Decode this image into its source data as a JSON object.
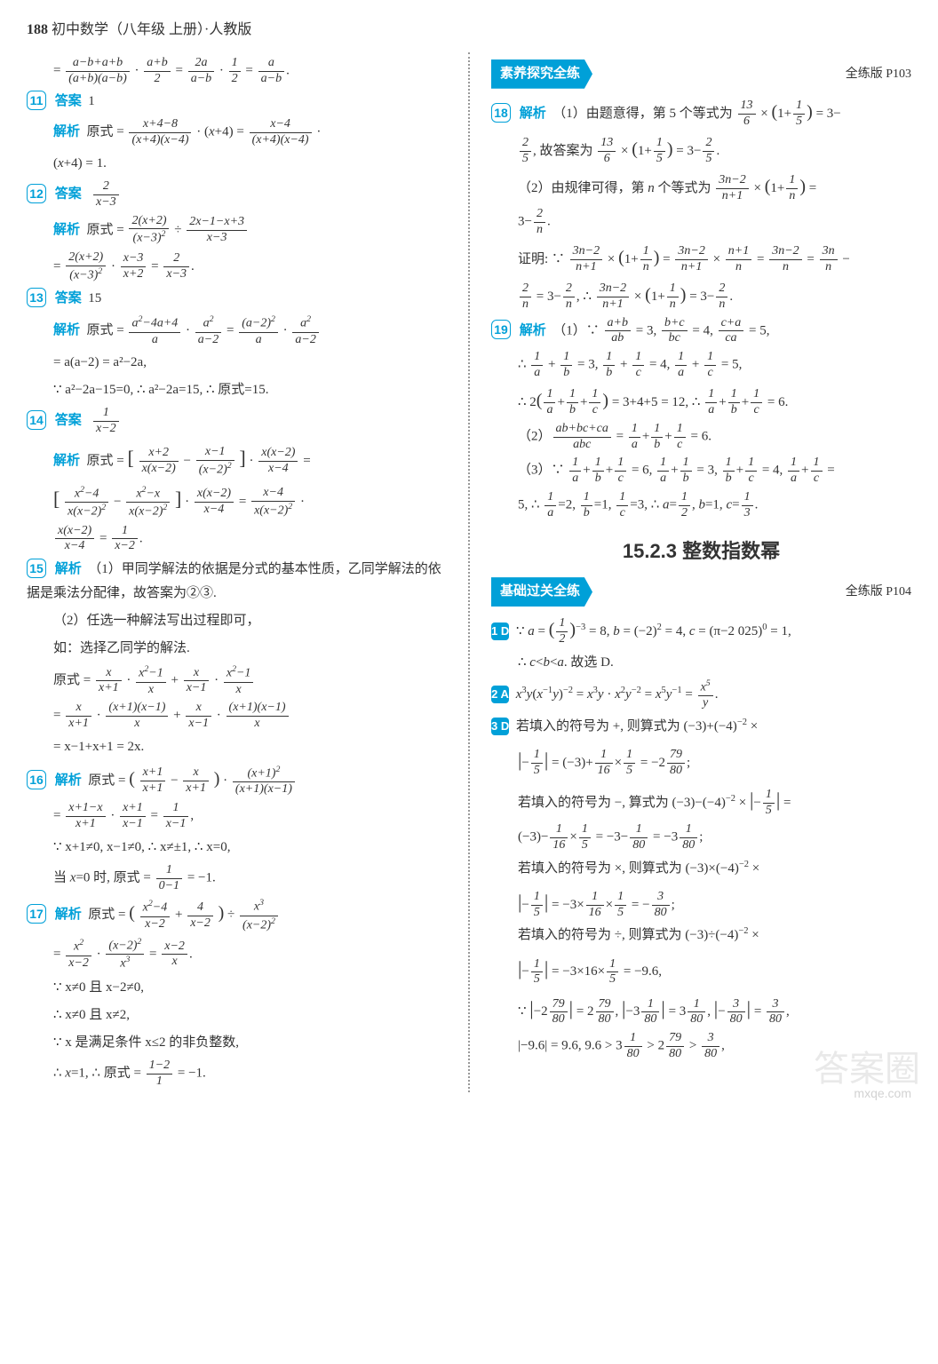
{
  "header": {
    "page_num": "188",
    "title": "初中数学（八年级 上册）·人教版"
  },
  "banners": {
    "suyang": {
      "text": "素养探究全练",
      "ref": "全练版 P103"
    },
    "jichu": {
      "text": "基础过关全练",
      "ref": "全练版 P104"
    }
  },
  "section_title": "15.2.3  整数指数幂",
  "left": {
    "l0": "= (a−b+a+b)/((a+b)(a−b)) · (a+b)/2 = 2a/(a−b) · 1/2 = a/(a−b).",
    "i11": {
      "ans_label": "答案",
      "ans": "1",
      "jiexi_label": "解析",
      "jiexi": "原式 = (x+4−8)/((x+4)(x−4)) · (x+4) = (x−4)/((x+4)(x−4)) · (x+4) = 1."
    },
    "i12": {
      "ans_label": "答案",
      "ans": "2/(x−3)",
      "jiexi_label": "解析",
      "jiexi1": "原式 = 2(x+2)/(x−3)² ÷ (2x−1−x+3)/(x−3)",
      "jiexi2": "= 2(x+2)/(x−3)² · (x−3)/(x+2) = 2/(x−3)."
    },
    "i13": {
      "ans_label": "答案",
      "ans": "15",
      "jiexi_label": "解析",
      "jiexi1": "原式 = (a²−4a+4)/a · a²/(a−2) = (a−2)²/a · a²/(a−2)",
      "jiexi2": "= a(a−2) = a²−2a,",
      "jiexi3": "∵ a²−2a−15=0, ∴ a²−2a=15, ∴ 原式=15."
    },
    "i14": {
      "ans_label": "答案",
      "ans": "1/(x−2)",
      "jiexi_label": "解析",
      "jiexi1": "原式 = [ (x+2)/(x(x−2)) − (x−1)/(x−2)² ] · x(x−2)/(x−4) =",
      "jiexi2": "[ (x²−4)/(x(x−2)²) − (x²−x)/(x(x−2)²) ] · x(x−2)/(x−4) = (x−4)/(x(x−2)²) · x(x−2)/(x−4) = 1/(x−2)."
    },
    "i15": {
      "label": "解析",
      "p1": "（1）甲同学解法的依据是分式的基本性质，乙同学解法的依据是乘法分配律，故答案为②③.",
      "p2": "（2）任选一种解法写出过程即可，",
      "p3": "如：选择乙同学的解法.",
      "p4": "原式 = x/(x+1) · (x²−1)/x + x/(x−1) · (x²−1)/x",
      "p5": "= x/(x+1) · ((x+1)(x−1))/x + x/(x−1) · ((x+1)(x−1))/x",
      "p6": "= x−1+x+1 = 2x."
    },
    "i16": {
      "label": "解析",
      "p1": "原式 = ( (x+1)/(x+1) − x/(x+1) ) · (x+1)²/((x+1)(x−1))",
      "p2": "= (x+1−x)/(x+1) · (x+1)/(x−1) = 1/(x−1),",
      "p3": "∵ x+1≠0, x−1≠0, ∴ x≠±1, ∴ x=0,",
      "p4": "当 x=0 时, 原式 = 1/(0−1) = −1."
    },
    "i17": {
      "label": "解析",
      "p1": "原式 = ( (x²−4)/(x−2) + 4/(x−2) ) ÷ x³/(x−2)²",
      "p2": "= x²/(x−2) · (x−2)²/x³ = (x−2)/x.",
      "p3": "∵ x≠0 且 x−2≠0,",
      "p4": "∴ x≠0 且 x≠2,",
      "p5": "∵ x 是满足条件 x≤2 的非负整数,",
      "p6": "∴ x=1, ∴ 原式 = (1−2)/1 = −1."
    }
  },
  "right": {
    "i18": {
      "label": "解析",
      "p1": "（1）由题意得, 第 5 个等式为 13/6 × (1+1/5) = 3−2/5, 故答案为 13/6 × (1+1/5) = 3−2/5.",
      "p2": "（2）由规律可得, 第 n 个等式为 (3n−2)/(n+1) × (1+1/n) = 3−2/n.",
      "p3": "证明: ∵ (3n−2)/(n+1) × (1+1/n) = (3n−2)/(n+1) × (n+1)/n = (3n−2)/n = 3n/n − 2/n = 3−2/n, ∴ (3n−2)/(n+1) × (1+1/n) = 3−2/n."
    },
    "i19": {
      "label": "解析",
      "p1": "（1）∵ (a+b)/ab = 3, (b+c)/bc = 4, (c+a)/ca = 5,",
      "p2": "∴ 1/a + 1/b = 3, 1/b + 1/c = 4, 1/a + 1/c = 5,",
      "p3": "∴ 2(1/a + 1/b + 1/c) = 3+4+5 = 12, ∴ 1/a + 1/b + 1/c = 6.",
      "p4": "（2）(ab+bc+ca)/abc = 1/a + 1/b + 1/c = 6.",
      "p5": "（3）∵ 1/a + 1/b + 1/c = 6, 1/a + 1/b = 3, 1/b + 1/c = 4, 1/a + 1/c = 5, ∴ 1/a = 2, 1/b = 1, 1/c = 3, ∴ a = 1/2, b = 1, c = 1/3."
    },
    "q1": {
      "badge": "1 D",
      "text": "∵ a = (1/2)⁻³ = 8, b = (−2)² = 4, c = (π−2 025)⁰ = 1, ∴ c<b<a. 故选 D."
    },
    "q2": {
      "badge": "2 A",
      "text": "x³y(x⁻¹y)⁻² = x³y · x²y⁻² = x⁵y⁻¹ = x⁵/y."
    },
    "q3": {
      "badge": "3 D",
      "p1": "若填入的符号为 +, 则算式为 (−3)+(−4)⁻² × |−1/5| = (−3)+1/16×1/5 = −2 79/80;",
      "p2": "若填入的符号为 −, 算式为 (−3)−(−4)⁻² × |−1/5| = (−3)−1/16×1/5 = −3−1/80 = −3 1/80;",
      "p3": "若填入的符号为 ×, 则算式为 (−3)×(−4)⁻² × |−1/5| = −3×1/16×1/5 = −3/80;",
      "p4": "若填入的符号为 ÷, 则算式为 (−3)÷(−4)⁻² × |−1/5| = −3×16×1/5 = −9.6,",
      "p5": "∵ |−2 79/80| = 2 79/80, |−3 1/80| = 3 1/80, |−3/80| = 3/80,",
      "p6": "|−9.6| = 9.6, 9.6 > 3 1/80 > 2 79/80 > 3/80,"
    }
  },
  "watermark": "答案圈",
  "wm_url": "mxqe.com"
}
